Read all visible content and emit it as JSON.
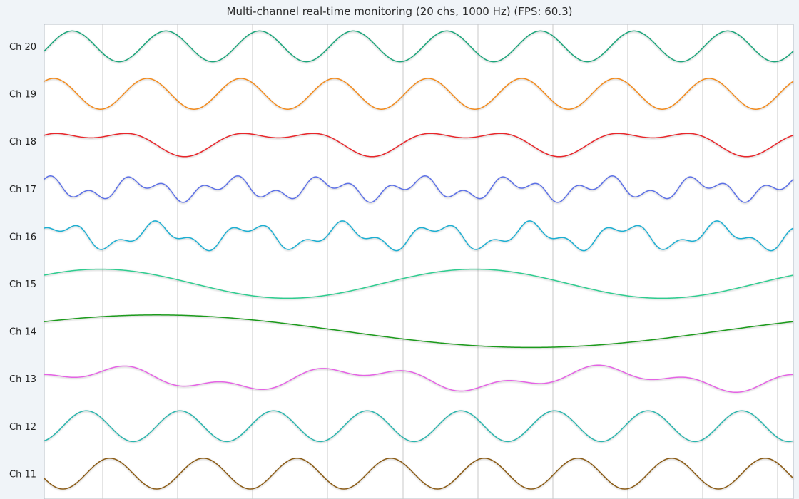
{
  "chart_data": {
    "type": "line",
    "title": "Multi-channel real-time monitoring (20 chs, 1000 Hz) (FPS: 60.3)",
    "grid": true,
    "x_range": [
      0,
      1
    ],
    "y_range": [
      -1,
      1
    ],
    "series": [
      {
        "name": "Ch 20",
        "color": "#1aa57a",
        "components": [
          {
            "amp": 0.9,
            "cycles": 8,
            "phase": 0.95
          }
        ]
      },
      {
        "name": "Ch 19",
        "color": "#f28a1c",
        "components": [
          {
            "amp": 0.9,
            "cycles": 8,
            "phase": 0.15
          }
        ]
      },
      {
        "name": "Ch 18",
        "color": "#e8262b",
        "components": [
          {
            "amp": 0.55,
            "cycles": 4,
            "phase": 0.0
          },
          {
            "amp": 0.35,
            "cycles": 8,
            "phase": 0.25
          }
        ]
      },
      {
        "name": "Ch 17",
        "color": "#5b6fe6",
        "components": [
          {
            "amp": 0.45,
            "cycles": 8,
            "phase": 0.25
          },
          {
            "amp": 0.35,
            "cycles": 20,
            "phase": 0.05
          }
        ]
      },
      {
        "name": "Ch 16",
        "color": "#1aaed1",
        "components": [
          {
            "amp": 0.6,
            "cycles": 8,
            "phase": 0.05
          },
          {
            "amp": 0.3,
            "cycles": 20,
            "phase": 0.3
          }
        ]
      },
      {
        "name": "Ch 15",
        "color": "#2ecc8f",
        "components": [
          {
            "amp": 0.85,
            "cycles": 2,
            "phase": 0.1
          }
        ]
      },
      {
        "name": "Ch 14",
        "color": "#1a9a1a",
        "components": [
          {
            "amp": 0.95,
            "cycles": 1,
            "phase": 0.1
          }
        ]
      },
      {
        "name": "Ch 13",
        "color": "#e463e4",
        "components": [
          {
            "amp": 0.5,
            "cycles": 3,
            "phase": 0.0
          },
          {
            "amp": 0.3,
            "cycles": 8,
            "phase": 0.35
          }
        ]
      },
      {
        "name": "Ch 12",
        "color": "#2bb5ad",
        "components": [
          {
            "amp": 0.9,
            "cycles": 8,
            "phase": 0.8
          }
        ]
      },
      {
        "name": "Ch 11",
        "color": "#8a5a12",
        "components": [
          {
            "amp": 0.9,
            "cycles": 8,
            "phase": 0.55
          }
        ]
      }
    ]
  }
}
